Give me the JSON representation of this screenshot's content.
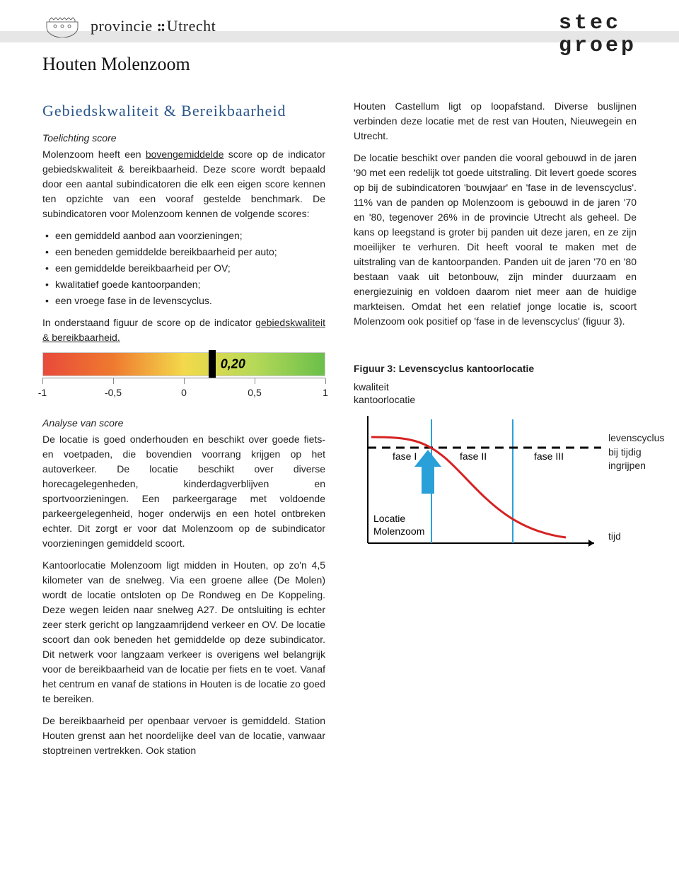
{
  "header": {
    "province_label": "provincie",
    "province_name": "Utrecht",
    "location_title": "Houten Molenzoom",
    "stec_line1": "stec",
    "stec_line2": "groep"
  },
  "left": {
    "section_title": "Gebiedskwaliteit & Bereikbaarheid",
    "sub1": "Toelichting score",
    "p1a": "Molenzoom heeft een ",
    "p1_u": "bovengemiddelde",
    "p1b": " score op de indicator gebiedskwaliteit & bereikbaarheid. Deze score wordt bepaald door een aantal subindicatoren die elk een eigen score kennen ten opzichte van een vooraf gestelde benchmark. De subindicatoren voor Molenzoom kennen de volgende scores:",
    "bullets": [
      "een gemiddeld aanbod aan voorzieningen;",
      "een beneden gemiddelde bereikbaarheid per auto;",
      "een gemiddelde bereikbaarheid per OV;",
      "kwalitatief goede kantoorpanden;",
      "een vroege fase in de levenscyclus."
    ],
    "p2a": "In onderstaand figuur de score op de indicator ",
    "p2_u": "gebiedskwaliteit & bereikbaarheid.",
    "sub2": "Analyse van score",
    "p3": "De locatie is goed onderhouden en beschikt over goede fiets- en voetpaden, die bovendien voorrang krijgen op het autoverkeer. De locatie beschikt over diverse horecagelegenheden, kinderdagverblijven en sportvoorzieningen. Een parkeergarage met voldoende parkeergelegenheid, hoger onderwijs en een hotel ontbreken echter. Dit zorgt er voor dat Molenzoom op de subindicator voorzieningen gemiddeld scoort.",
    "p4": "Kantoorlocatie Molenzoom ligt midden in Houten, op zo'n 4,5 kilometer van de snelweg. Via een groene allee (De Molen) wordt de locatie ontsloten op De Rondweg en De Koppeling. Deze wegen leiden naar snelweg A27. De ontsluiting is echter zeer sterk gericht op langzaamrijdend verkeer en OV. De locatie scoort dan ook beneden het gemiddelde op deze subindicator. Dit netwerk voor langzaam verkeer is overigens wel belangrijk voor de bereikbaarheid van de locatie per fiets en te voet. Vanaf het centrum en vanaf de stations in Houten is de locatie zo goed te bereiken.",
    "p5": "De bereikbaarheid per openbaar vervoer is gemiddeld. Station Houten grenst aan het noordelijke deel van de locatie, vanwaar stoptreinen vertrekken. Ook station"
  },
  "right": {
    "p1": "Houten Castellum ligt op loopafstand. Diverse buslijnen verbinden deze locatie met de rest van Houten, Nieuwegein en Utrecht.",
    "p2": "De locatie beschikt over panden die vooral gebouwd in de jaren '90 met een redelijk tot goede uitstraling. Dit levert goede scores op bij de subindicatoren 'bouwjaar' en 'fase in de levenscyclus'. 11% van de panden op Molenzoom is gebouwd in de jaren '70 en '80, tegenover 26% in de provincie Utrecht als geheel. De kans op leegstand is groter bij panden uit deze jaren, en ze zijn moeilijker te verhuren. Dit heeft vooral te maken met de uitstraling van de kantoorpanden. Panden uit de jaren '70 en '80 bestaan vaak uit betonbouw, zijn minder duurzaam en energiezuinig en voldoen daarom niet meer aan de huidige markteisen. Omdat het een relatief jonge locatie is, scoort Molenzoom ook positief op 'fase in de levenscyclus' (figuur 3)."
  },
  "gauge": {
    "min": -1,
    "max": 1,
    "value": 0.2,
    "value_label": "0,20",
    "ticks": [
      {
        "pos": 0,
        "label": "-1"
      },
      {
        "pos": 25,
        "label": "-0,5"
      },
      {
        "pos": 50,
        "label": "0"
      },
      {
        "pos": 75,
        "label": "0,5"
      },
      {
        "pos": 100,
        "label": "1"
      }
    ],
    "gradient_colors": [
      "#e84a3a",
      "#ef7a2f",
      "#f3d94b",
      "#b6d957",
      "#6abf4b"
    ],
    "marker_color": "#000000"
  },
  "fig3": {
    "caption": "Figuur 3: Levenscyclus kantoorlocatie",
    "y_label_1": "kwaliteit",
    "y_label_2": "kantoorlocatie",
    "x_label": "tijd",
    "phase1": "fase I",
    "phase2": "fase II",
    "phase3": "fase III",
    "side_label_1": "levenscyclus",
    "side_label_2": "bij tijdig",
    "side_label_3": "ingrijpen",
    "loc_label_1": "Locatie",
    "loc_label_2": "Molenzoom",
    "curve_color": "#d62222",
    "divider_color": "#2aa0d8",
    "arrow_color": "#2aa0d8",
    "dash_color": "#000000",
    "axis_color": "#000000"
  }
}
